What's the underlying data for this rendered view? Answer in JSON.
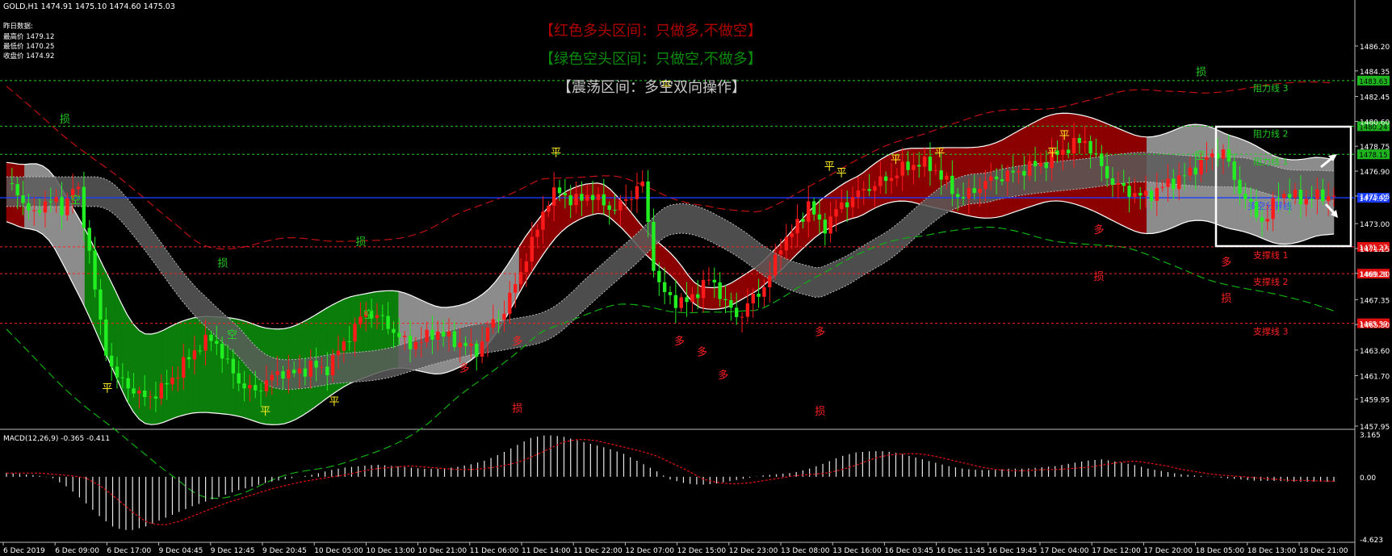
{
  "header": {
    "symbol_line": "GOLD,H1  1474.91 1475.10 1474.60 1475.03",
    "yesterday_title": "昨日数据:",
    "yesterday_high": "最高价 1479.12",
    "yesterday_low": "最低价 1470.25",
    "yesterday_close": "收盘价 1474.92"
  },
  "banners": {
    "red_zone": "【红色多头区间：只做多,不做空】",
    "green_zone": "【绿色空头区间：只做空,不做多】",
    "range_zone": "【震荡区间：多空双向操作】"
  },
  "colors": {
    "background": "#000000",
    "bull_candle": "#ff1a1a",
    "bear_candle": "#22ee22",
    "red_zone": "#8b0000",
    "green_zone": "#0a7d0a",
    "gray_zone": "#8c8c8c",
    "blue_line": "#1a3cff",
    "support": "#ff2020",
    "resistance": "#22cc22",
    "signal_flat": "#ffee22"
  },
  "levels": {
    "resistance": [
      {
        "name": "阻力线 3",
        "price": 1483.63
      },
      {
        "name": "阻力线 2",
        "price": 1480.24
      },
      {
        "name": "阻力线 1",
        "price": 1478.15
      }
    ],
    "pivot": {
      "name": "多空分界线",
      "price": 1474.92
    },
    "support": [
      {
        "name": "支撑线 1",
        "price": 1471.27
      },
      {
        "name": "支撑线 2",
        "price": 1469.28
      },
      {
        "name": "支撑线 3",
        "price": 1465.59
      }
    ]
  },
  "markers": {
    "flat": "平",
    "long": "多",
    "short": "空",
    "stop": "损"
  },
  "macd": {
    "label": "MACD(12,26,9) -0.365 -0.411",
    "axis_ticks": [
      "3.165",
      "0.00",
      "-4.623"
    ]
  },
  "chart_data": {
    "type": "candlestick",
    "symbol": "GOLD",
    "timeframe": "H1",
    "ylim": [
      1457.95,
      1488.3
    ],
    "price_ticks": [
      "1486.20",
      "1484.35",
      "1482.45",
      "1480.60",
      "1478.75",
      "1476.90",
      "1475.05",
      "1473.00",
      "1471.15",
      "1469.30",
      "1467.35",
      "1465.50",
      "1463.60",
      "1461.70",
      "1459.95",
      "1457.95"
    ],
    "price_tick_values": [
      1486.2,
      1484.35,
      1482.45,
      1480.6,
      1478.75,
      1476.9,
      1475.05,
      1473.0,
      1471.15,
      1469.3,
      1467.35,
      1465.5,
      1463.6,
      1461.7,
      1459.95,
      1457.95
    ],
    "x_labels": [
      "6 Dec 2019",
      "6 Dec 09:00",
      "6 Dec 17:00",
      "9 Dec 04:45",
      "9 Dec 12:45",
      "9 Dec 20:45",
      "10 Dec 05:00",
      "10 Dec 13:00",
      "10 Dec 21:00",
      "11 Dec 06:00",
      "11 Dec 14:00",
      "11 Dec 22:00",
      "12 Dec 07:00",
      "12 Dec 15:00",
      "12 Dec 23:00",
      "13 Dec 08:00",
      "13 Dec 16:00",
      "16 Dec 03:45",
      "16 Dec 11:45",
      "16 Dec 19:45",
      "17 Dec 04:00",
      "17 Dec 12:00",
      "17 Dec 20:00",
      "18 Dec 05:00",
      "18 Dec 13:00",
      "18 Dec 21:00"
    ],
    "price_path": [
      1476,
      1475,
      1473.5,
      1475,
      1474,
      1476.2,
      1471,
      1464,
      1461.5,
      1460.8,
      1460,
      1460.5,
      1461.5,
      1462.8,
      1464,
      1464.5,
      1462.5,
      1461,
      1460.5,
      1461.5,
      1462,
      1461.8,
      1462.5,
      1462,
      1463.5,
      1465,
      1466.5,
      1466,
      1465,
      1464,
      1464.3,
      1465,
      1464.5,
      1464,
      1463.5,
      1465.5,
      1466.5,
      1469,
      1471.5,
      1474.5,
      1475.5,
      1474.5,
      1475.2,
      1474.6,
      1474,
      1475,
      1476,
      1468.5,
      1467.5,
      1467,
      1468,
      1469,
      1467,
      1466,
      1467.5,
      1468.5,
      1471.5,
      1472.5,
      1474.5,
      1472.5,
      1474,
      1474.8,
      1475.5,
      1476,
      1476.5,
      1477.2,
      1477.5,
      1477.2,
      1476,
      1474.8,
      1475.5,
      1476.2,
      1476.5,
      1476.8,
      1477.2,
      1477.5,
      1478.2,
      1478.8,
      1479.2,
      1477.5,
      1476,
      1475.5,
      1475,
      1475.3,
      1476,
      1476.4,
      1477.2,
      1478,
      1478.4,
      1475.8,
      1474.2,
      1473,
      1475.3,
      1475,
      1474.8,
      1475.1,
      1475.03
    ],
    "macd_hist": [
      0.3,
      0.2,
      0.1,
      -0.1,
      -0.8,
      -1.8,
      -2.9,
      -3.8,
      -4.0,
      -3.7,
      -3.2,
      -2.7,
      -2.2,
      -1.8,
      -1.4,
      -1.0,
      -0.7,
      -0.4,
      -0.2,
      0.0,
      0.2,
      0.5,
      0.7,
      0.8,
      0.9,
      0.8,
      0.7,
      0.6,
      0.6,
      0.7,
      0.9,
      1.2,
      1.7,
      2.3,
      2.9,
      3.1,
      3.0,
      2.7,
      2.4,
      2.1,
      1.7,
      1.1,
      0.5,
      -0.2,
      -0.5,
      -0.6,
      -0.5,
      -0.3,
      -0.1,
      0.1,
      0.2,
      0.3,
      0.6,
      1.0,
      1.5,
      1.8,
      1.9,
      1.9,
      1.7,
      1.4,
      1.1,
      0.8,
      0.6,
      0.5,
      0.5,
      0.6,
      0.6,
      0.7,
      0.8,
      1.0,
      1.2,
      1.3,
      1.1,
      0.9,
      0.6,
      0.4,
      0.2,
      0.1,
      0.0,
      -0.1,
      -0.2,
      -0.3,
      -0.3,
      -0.35,
      -0.37,
      -0.36,
      -0.37
    ],
    "macd_signal_end": -0.411,
    "macd_main_end": -0.365
  }
}
